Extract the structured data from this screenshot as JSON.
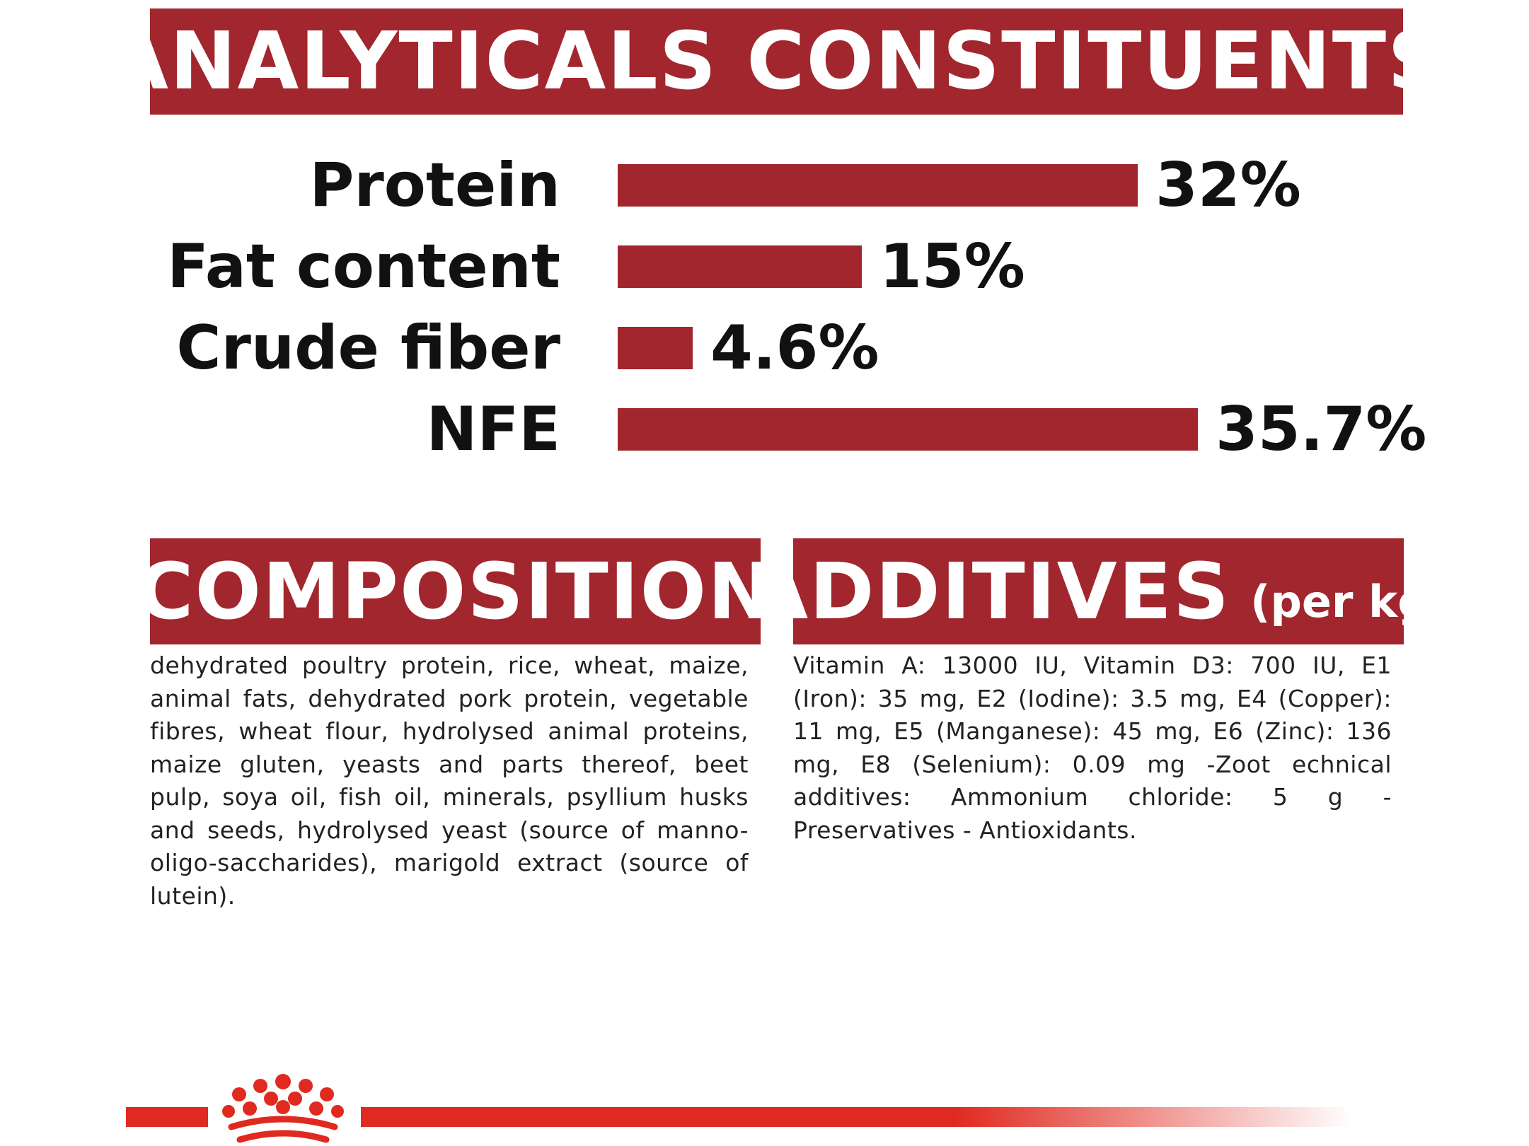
{
  "headers": {
    "analytical": "ANALYTICALS CONSTITUENTS",
    "composition": "COMPOSITION",
    "additives": "ADDITIVES",
    "additives_suffix": "(per kg)"
  },
  "chart_data": {
    "type": "bar",
    "orientation": "horizontal",
    "title": "ANALYTICALS CONSTITUENTS",
    "categories": [
      "Protein",
      "Fat content",
      "Crude fiber",
      "NFE"
    ],
    "values": [
      32,
      15,
      4.6,
      35.7
    ],
    "value_labels": [
      "32%",
      "15%",
      "4.6%",
      "35.7%"
    ],
    "unit": "%",
    "xlim": [
      0,
      35.7
    ],
    "grid": false,
    "legend": "none",
    "bar_color": "#a1262d"
  },
  "composition_text": "dehydrated poultry protein, rice, wheat, maize, animal fats, dehydrated pork protein, vegetable fibres, wheat flour, hydrolysed animal proteins, maize gluten, yeasts and parts thereof, beet pulp, soya oil, fish oil, minerals, psyllium husks and seeds, hydrolysed yeast (source of manno-oligo-saccharides), marigold extract (source of lutein).",
  "additives_text": "Vitamin A: 13000 IU, Vitamin D3: 700 IU, E1 (Iron): 35 mg, E2 (Iodine): 3.5 mg, E4 (Copper): 11 mg, E5 (Manganese): 45 mg, E6 (Zinc): 136 mg, E8 (Selenium): 0.09 mg -Zoot echnical additives: Ammonium chloride: 5 g - Preservatives - Antioxidants.",
  "colors": {
    "brand_red": "#a1262d",
    "footer_red": "#e02a20"
  },
  "icons": {
    "footer_logo": "crown-icon"
  }
}
